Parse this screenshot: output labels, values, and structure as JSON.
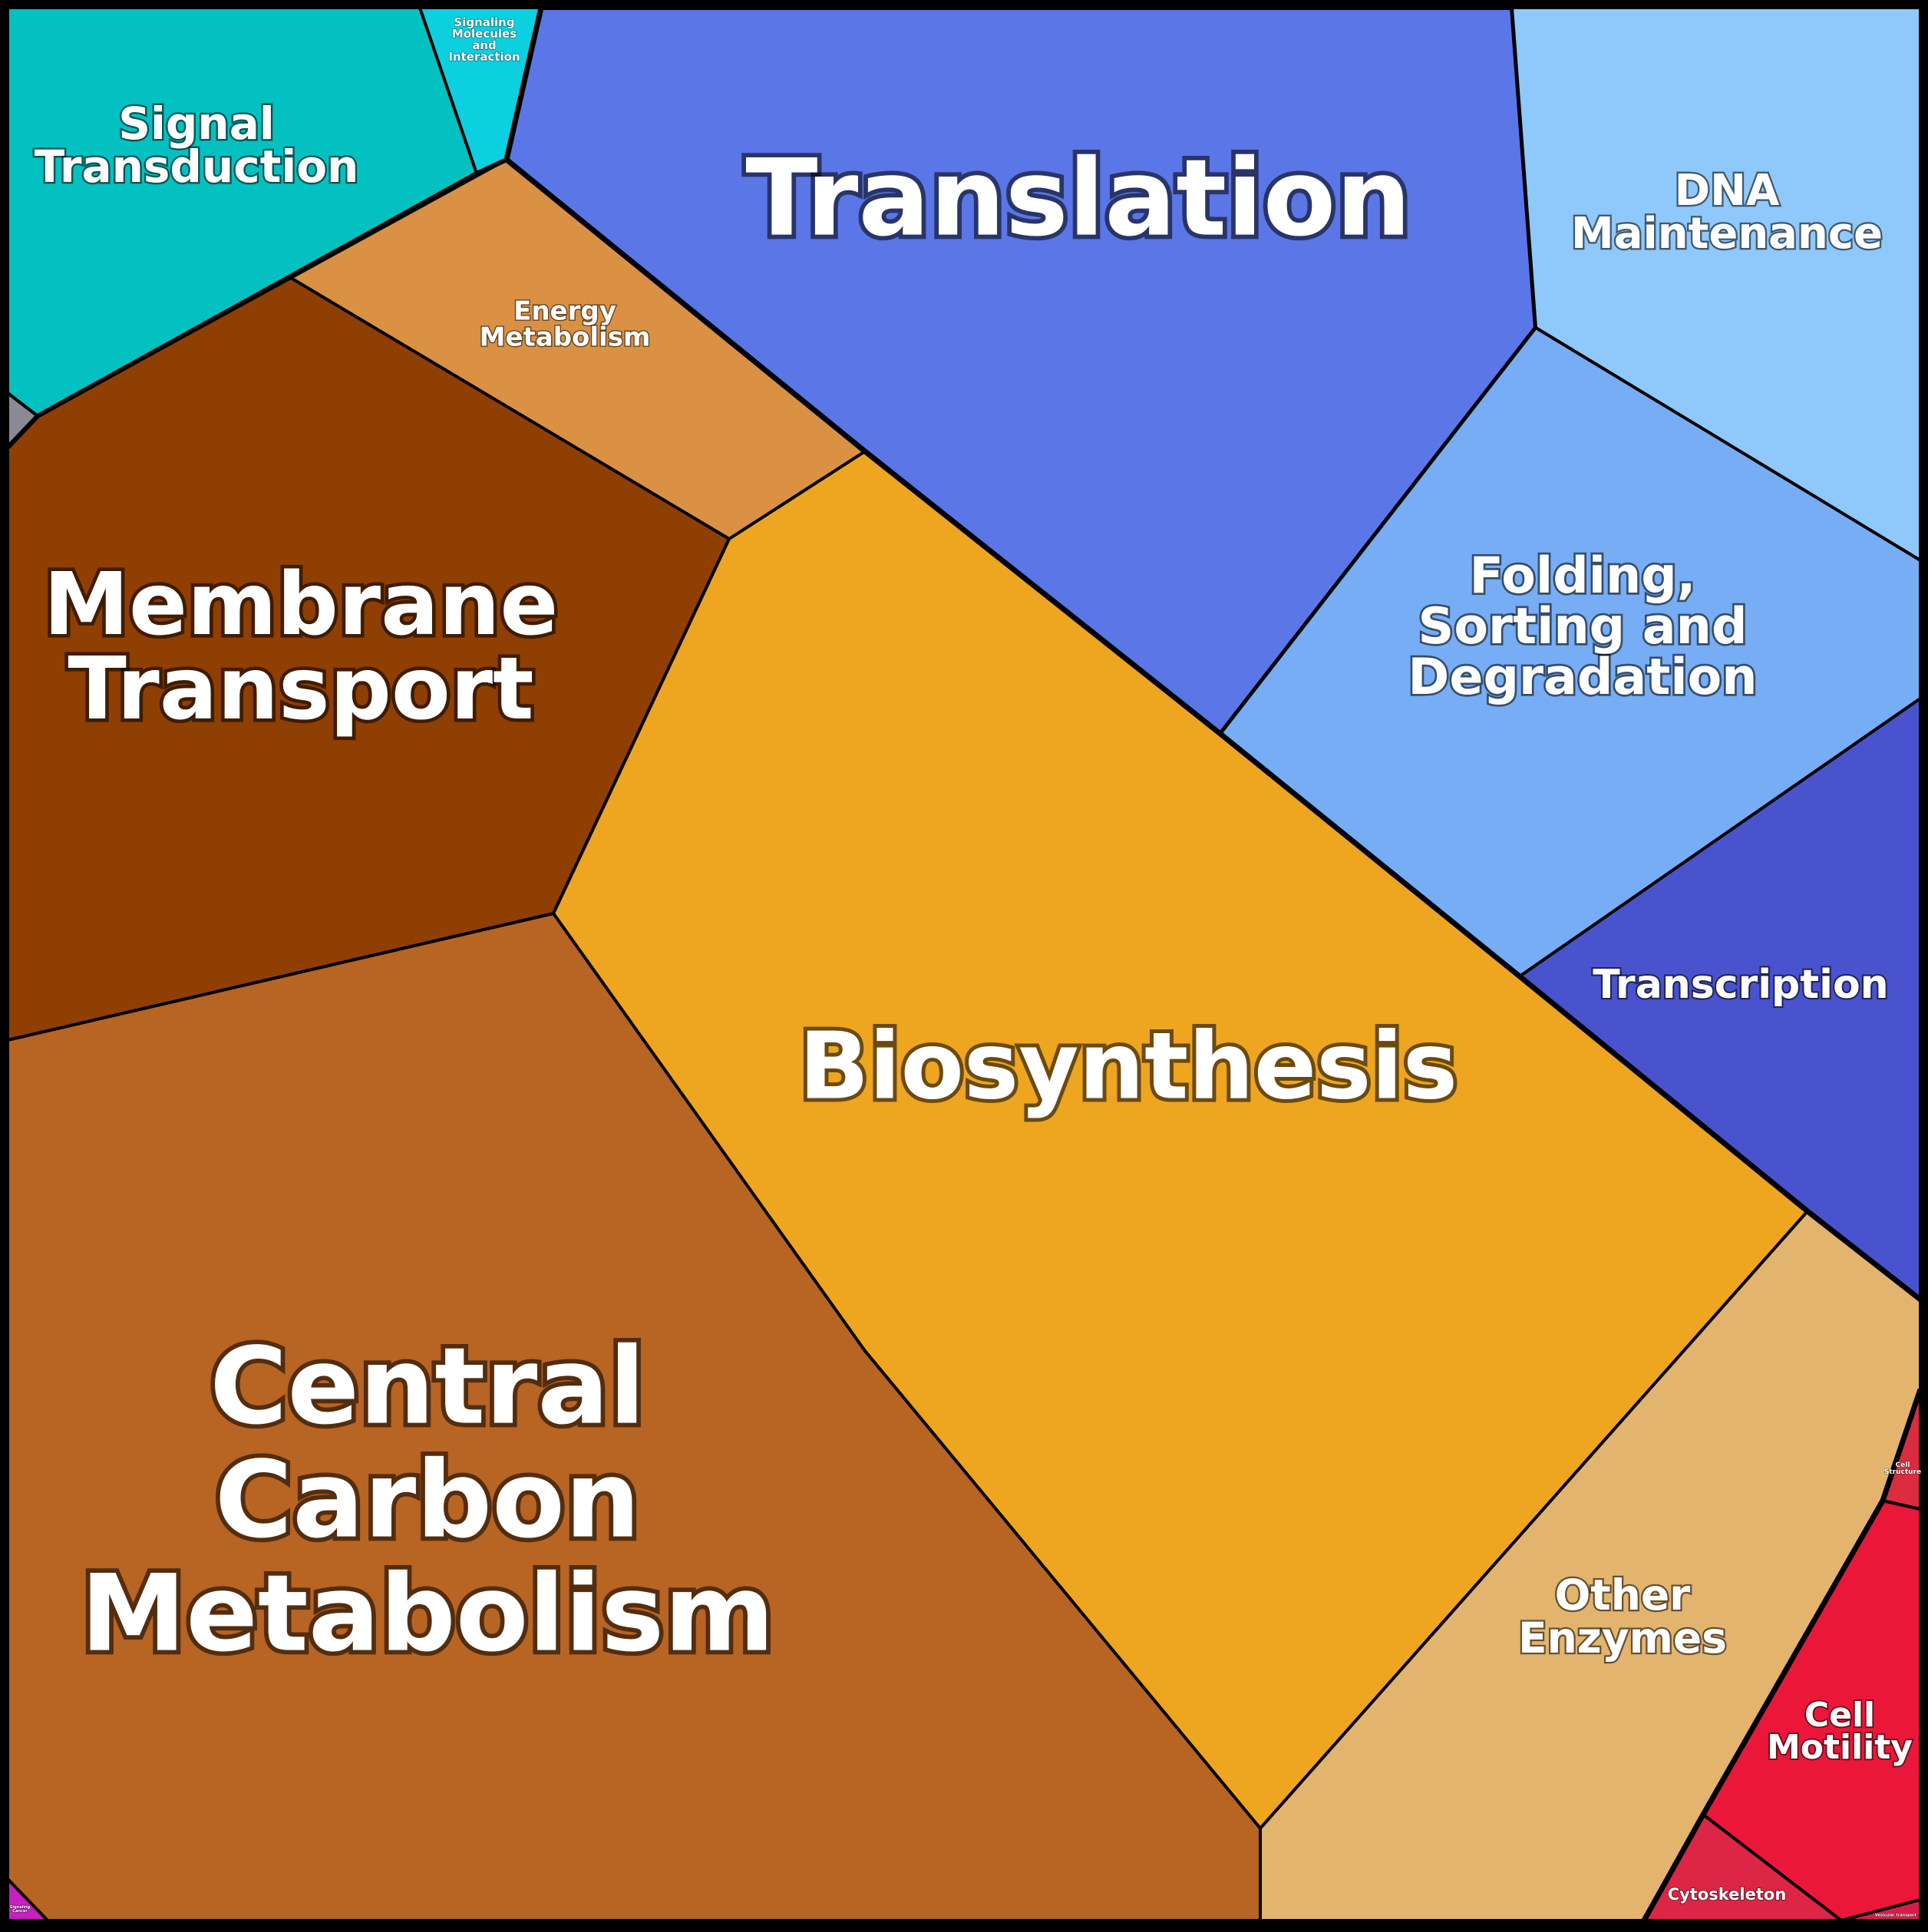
{
  "diagram": {
    "type": "voronoi-treemap",
    "cells": [
      {
        "id": "translation",
        "label": [
          "Translation"
        ],
        "color": "#5B76E6"
      },
      {
        "id": "dna-maintenance",
        "label": [
          "DNA",
          "Maintenance"
        ],
        "color": "#8FC8FA"
      },
      {
        "id": "folding",
        "label": [
          "Folding,",
          "Sorting and",
          "Degradation"
        ],
        "color": "#76ADF4"
      },
      {
        "id": "transcription",
        "label": [
          "Transcription"
        ],
        "color": "#4953CE"
      },
      {
        "id": "biosynthesis",
        "label": [
          "Biosynthesis"
        ],
        "color": "#EEA520"
      },
      {
        "id": "central-carbon",
        "label": [
          "Central",
          "Carbon",
          "Metabolism"
        ],
        "color": "#B86423"
      },
      {
        "id": "membrane-transport",
        "label": [
          "Membrane",
          "Transport"
        ],
        "color": "#8F3F02"
      },
      {
        "id": "energy-metabolism",
        "label": [
          "Energy",
          "Metabolism"
        ],
        "color": "#DA9144"
      },
      {
        "id": "signal-transduction",
        "label": [
          "Signal",
          "Transduction"
        ],
        "color": "#04C1C1"
      },
      {
        "id": "signaling-molecules",
        "label": [
          "Signaling",
          "Molecules",
          "and",
          "Interaction"
        ],
        "color": "#0CCFDF"
      },
      {
        "id": "other-enzymes",
        "label": [
          "Other",
          "Enzymes"
        ],
        "color": "#E3B46E"
      },
      {
        "id": "cell-motility",
        "label": [
          "Cell",
          "Motility"
        ],
        "color": "#EB1739"
      },
      {
        "id": "cytoskeleton",
        "label": [
          "Cytoskeleton"
        ],
        "color": "#DD2545"
      },
      {
        "id": "cell-structure",
        "label": [
          "Cell",
          "Structure"
        ],
        "color": "#DB2C3F"
      },
      {
        "id": "vesicular",
        "label": [
          "Vesicular transport"
        ],
        "color": "#D81D4A"
      },
      {
        "id": "small-gray",
        "label": [
          ""
        ],
        "color": "#8A8A96"
      },
      {
        "id": "small-magenta",
        "label": [
          "Signaling",
          "Cancer"
        ],
        "color": "#C71FC0"
      }
    ]
  }
}
